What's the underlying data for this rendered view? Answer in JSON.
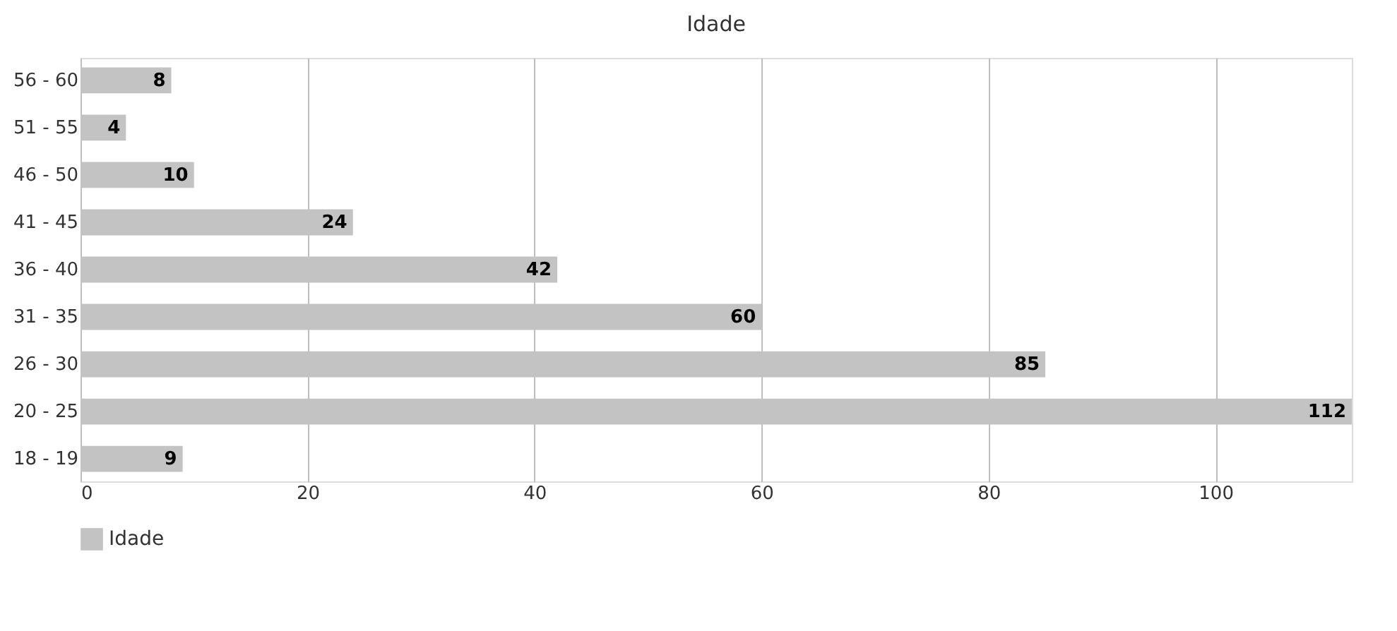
{
  "chart_data": {
    "type": "bar",
    "orientation": "horizontal",
    "title": "Idade",
    "categories": [
      "56 - 60",
      "51 - 55",
      "46 - 50",
      "41 - 45",
      "36 - 40",
      "31 - 35",
      "26 - 30",
      "20 - 25",
      "18 - 19"
    ],
    "series": [
      {
        "name": "Idade",
        "color": "#c3c3c3",
        "values": [
          8,
          4,
          10,
          24,
          42,
          60,
          85,
          112,
          9
        ]
      }
    ],
    "xlim": [
      0,
      112
    ],
    "xticks": [
      0,
      20,
      40,
      60,
      80,
      100
    ],
    "grid": "x",
    "data_labels": true,
    "legend": "bottom"
  }
}
